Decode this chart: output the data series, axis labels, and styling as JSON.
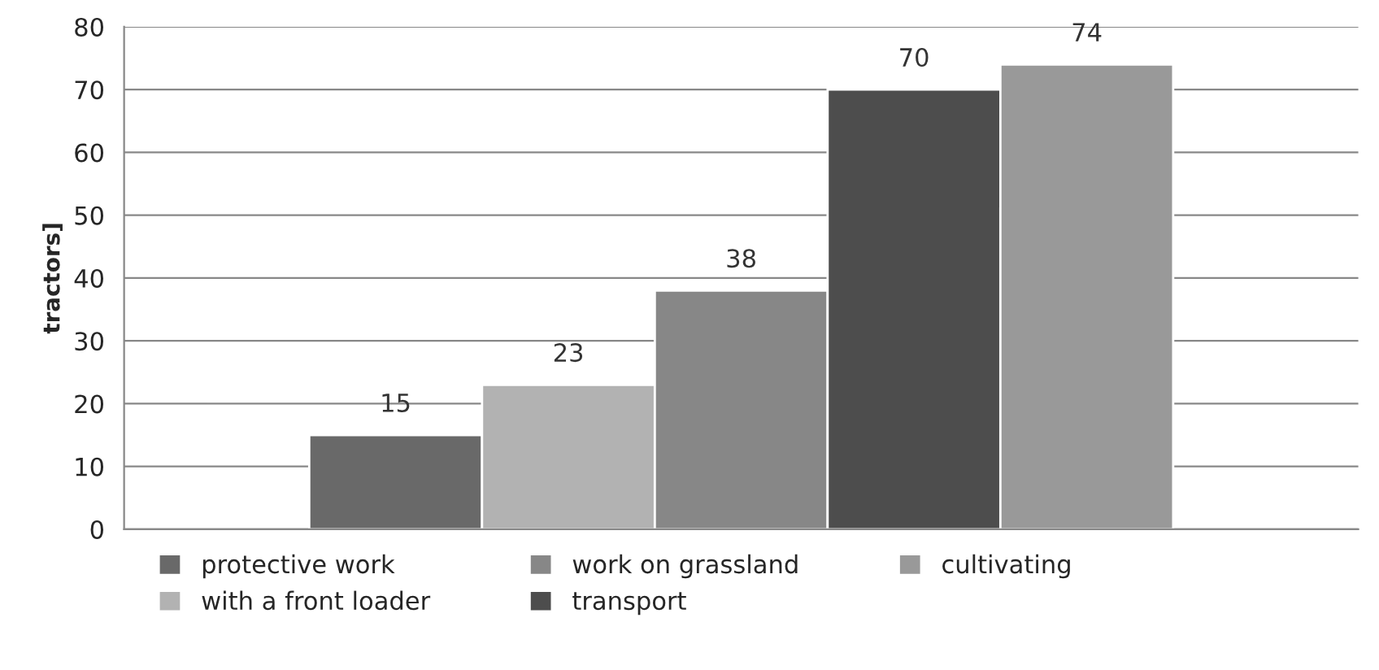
{
  "chart_data": {
    "type": "bar",
    "ylabel": "tractors]",
    "categories": [
      null
    ],
    "series": [
      {
        "name": "protective work",
        "color": "#696969",
        "values": [
          15
        ]
      },
      {
        "name": "with a front loader",
        "color": "#b2b2b2",
        "values": [
          23
        ]
      },
      {
        "name": "work on grassland",
        "color": "#878787",
        "values": [
          38
        ]
      },
      {
        "name": "transport",
        "color": "#4d4d4d",
        "values": [
          70
        ]
      },
      {
        "name": "cultivating",
        "color": "#999999",
        "values": [
          74
        ]
      }
    ],
    "ylim": [
      0,
      80
    ],
    "yticks": [
      0,
      10,
      20,
      30,
      40,
      50,
      60,
      70,
      80
    ],
    "grid": "y",
    "legend": "bottom",
    "data_labels": true
  }
}
